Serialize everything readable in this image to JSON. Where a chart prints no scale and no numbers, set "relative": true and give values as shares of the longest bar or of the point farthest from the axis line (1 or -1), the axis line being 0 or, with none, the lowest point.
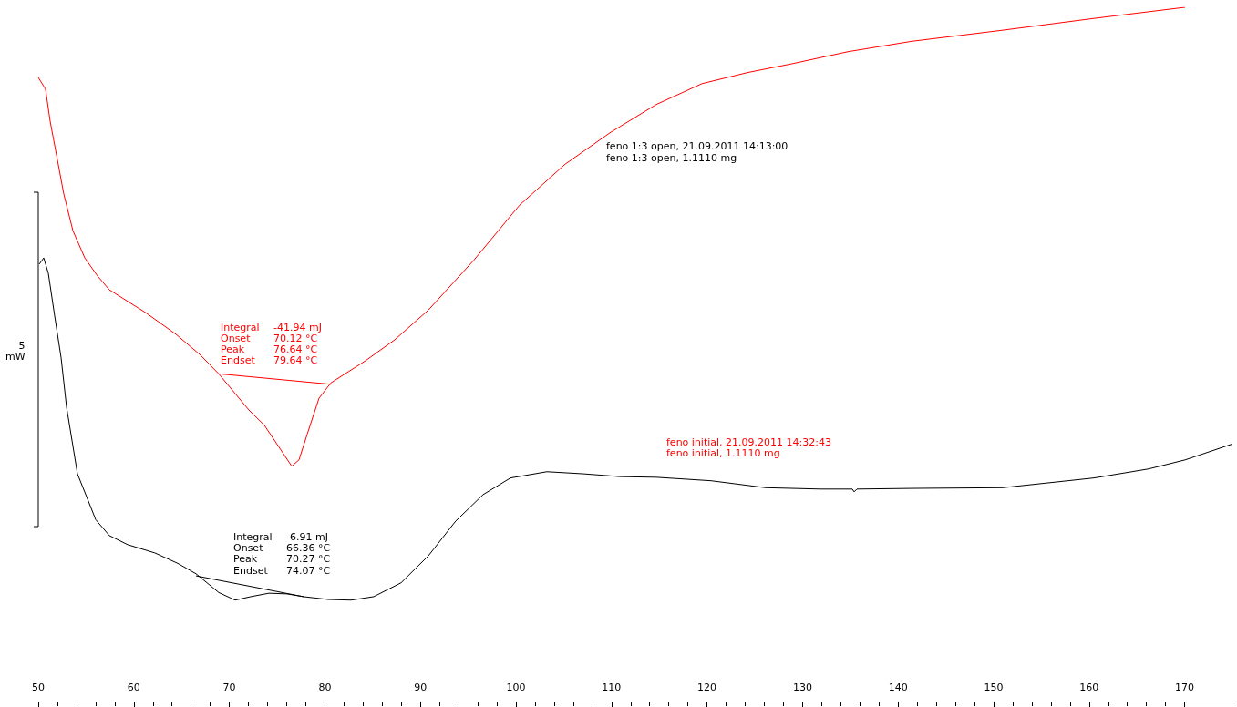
{
  "chart_data": {
    "type": "line",
    "relative": true,
    "xlim": [
      50,
      175
    ],
    "xticks": [
      50,
      60,
      70,
      80,
      90,
      100,
      110,
      120,
      130,
      140,
      150,
      160,
      170
    ],
    "grid": false,
    "marker": "none",
    "line_style": "solid",
    "annotations": [
      "feno 1:3 open, 21.09.2011 14:13:00",
      "feno 1:3 open, 1.1110 mg",
      "feno initial, 21.09.2011 14:32:43",
      "feno initial, 1.1110 mg",
      "Integral -41.94 mJ",
      "Onset 70.12 °C",
      "Peak 76.64 °C",
      "Endset 79.64 °C",
      "Integral -6.91 mJ",
      "Onset 66.36 °C",
      "Peak 70.27 °C",
      "Endset 74.07 °C",
      "5\nmW"
    ],
    "series": [
      {
        "color": "#ff0000",
        "x": [
          50.0,
          50.76,
          51.24,
          51.91,
          52.67,
          53.63,
          54.87,
          56.2,
          57.44,
          61.26,
          64.41,
          66.98,
          68.89,
          72.04,
          73.66,
          76.24,
          76.53,
          77.29,
          78.15,
          79.39,
          80.63,
          84.16,
          87.31,
          90.84,
          95.61,
          100.38,
          105.15,
          109.92,
          114.69,
          119.47,
          124.24,
          129.01,
          134.73,
          141.41,
          150.95,
          160.5,
          170.04
        ],
        "values": [
          0.899,
          0.882,
          0.836,
          0.787,
          0.731,
          0.678,
          0.639,
          0.613,
          0.593,
          0.56,
          0.529,
          0.499,
          0.472,
          0.42,
          0.398,
          0.345,
          0.339,
          0.348,
          0.385,
          0.437,
          0.459,
          0.49,
          0.521,
          0.564,
          0.636,
          0.715,
          0.774,
          0.82,
          0.86,
          0.89,
          0.906,
          0.919,
          0.936,
          0.951,
          0.967,
          0.984,
          1.0
        ]
      },
      {
        "color": "#000000",
        "x": [
          50.1,
          50.57,
          51.05,
          51.72,
          52.39,
          52.96,
          54.1,
          55.06,
          56.01,
          57.44,
          59.35,
          62.21,
          64.6,
          66.51,
          68.89,
          70.61,
          72.23,
          74.14,
          76.05,
          77.77,
          80.34,
          82.73,
          85.11,
          87.98,
          90.84,
          93.7,
          96.56,
          99.43,
          103.24,
          107.06,
          110.88,
          114.69,
          120.42,
          126.15,
          131.87,
          135.21,
          135.4,
          135.69,
          141.41,
          150.95,
          160.5,
          166.22,
          170.04,
          175.0
        ],
        "values": [
          0.63,
          0.639,
          0.617,
          0.555,
          0.495,
          0.424,
          0.328,
          0.295,
          0.262,
          0.239,
          0.226,
          0.214,
          0.199,
          0.184,
          0.157,
          0.146,
          0.151,
          0.156,
          0.155,
          0.151,
          0.147,
          0.146,
          0.151,
          0.171,
          0.21,
          0.26,
          0.298,
          0.322,
          0.331,
          0.328,
          0.324,
          0.323,
          0.318,
          0.308,
          0.306,
          0.306,
          0.302,
          0.306,
          0.307,
          0.308,
          0.322,
          0.335,
          0.348,
          0.371
        ]
      },
      {
        "color": "#ff0000",
        "x": [
          68.89,
          80.63
        ],
        "values": [
          0.472,
          0.457
        ]
      },
      {
        "color": "#000000",
        "x": [
          66.51,
          77.77
        ],
        "values": [
          0.181,
          0.151
        ]
      }
    ]
  }
}
